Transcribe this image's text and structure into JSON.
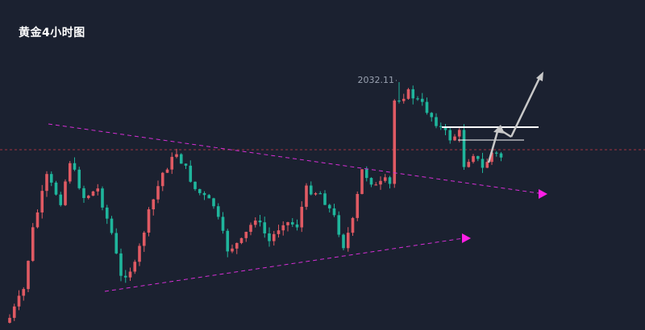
{
  "chart_data": {
    "type": "candlestick",
    "title": "黄金4小时图",
    "xlabel": "",
    "ylabel": "",
    "grid": false,
    "colors": {
      "background": "#1b2130",
      "up": "#e05a63",
      "down": "#1fb59c",
      "trendline": "#d62fd6",
      "arrow_head": "#ff1fe6",
      "level_line": "#ffffff",
      "projection_arrow": "#c8c8c8",
      "reference_line": "#a0343f"
    },
    "annotations": [
      {
        "text": "2032.11"
      }
    ]
  }
}
